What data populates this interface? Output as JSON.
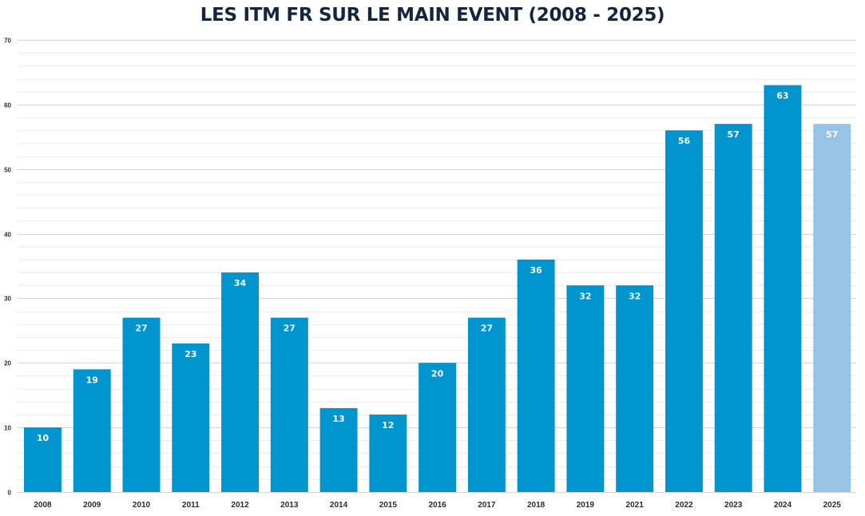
{
  "chart_data": {
    "type": "bar",
    "title": "LES ITM FR SUR LE MAIN EVENT (2008 - 2025)",
    "categories": [
      "2008",
      "2009",
      "2010",
      "2011",
      "2012",
      "2013",
      "2014",
      "2015",
      "2016",
      "2017",
      "2018",
      "2019",
      "2021",
      "2022",
      "2023",
      "2024",
      "2025"
    ],
    "values": [
      10,
      19,
      27,
      23,
      34,
      27,
      13,
      12,
      20,
      27,
      36,
      32,
      32,
      56,
      57,
      63,
      57
    ],
    "ylim": [
      0,
      70
    ],
    "yticks": [
      0,
      10,
      20,
      30,
      40,
      50,
      60,
      70
    ],
    "grid": true,
    "data_labels": true,
    "colors": {
      "bar": "#0095cf",
      "bar_highlight": "#97c4e6",
      "highlight_category": "2025",
      "major_grid": "#d4d4d4",
      "minor_grid": "#ececec",
      "title": "#14263f"
    }
  }
}
